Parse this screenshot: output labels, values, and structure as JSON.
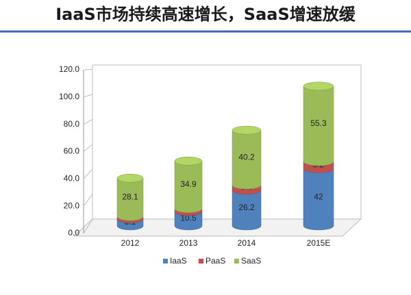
{
  "chart_data": {
    "type": "bar",
    "title": "IaaS市场持续高速增长，SaaS增速放缓",
    "categories": [
      "2012",
      "2013",
      "2014",
      "2015E"
    ],
    "series": [
      {
        "name": "IaaS",
        "color": "#4f81bd",
        "values": [
          5.1,
          10.5,
          26.2,
          42
        ]
      },
      {
        "name": "PaaS",
        "color": "#c0504d",
        "values": [
          1.8,
          2.2,
          3.8,
          5.2
        ]
      },
      {
        "name": "SaaS",
        "color": "#9bbb59",
        "values": [
          28.1,
          34.9,
          40.2,
          55.3
        ]
      }
    ],
    "ylim": [
      0,
      120
    ],
    "yticks": [
      {
        "value": 0,
        "label": "0.0"
      },
      {
        "value": 20,
        "label": "20.0"
      },
      {
        "value": 40,
        "label": "40.0"
      },
      {
        "value": 60,
        "label": "60.0"
      },
      {
        "value": 80,
        "label": "80.0"
      },
      {
        "value": 100,
        "label": "100.0"
      },
      {
        "value": 120,
        "label": "120.0"
      }
    ],
    "stacked": true,
    "legend": "bottom"
  }
}
